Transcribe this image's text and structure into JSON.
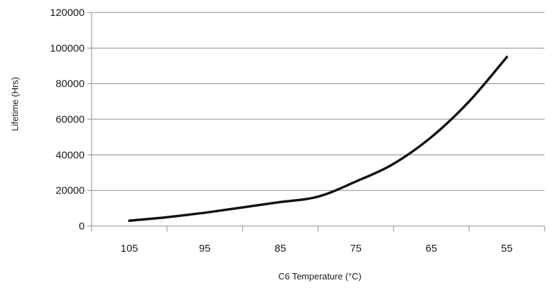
{
  "chart_data": {
    "type": "line",
    "x_categories": [
      "105",
      "95",
      "85",
      "75",
      "65",
      "55"
    ],
    "series": [
      {
        "points": [
          {
            "x": 105,
            "y": 3000
          },
          {
            "x": 100,
            "y": 5000
          },
          {
            "x": 95,
            "y": 7500
          },
          {
            "x": 90,
            "y": 10500
          },
          {
            "x": 85,
            "y": 13500
          },
          {
            "x": 80,
            "y": 16500
          },
          {
            "x": 75,
            "y": 25000
          },
          {
            "x": 70,
            "y": 35000
          },
          {
            "x": 65,
            "y": 50000
          },
          {
            "x": 60,
            "y": 70000
          },
          {
            "x": 55,
            "y": 95000
          }
        ],
        "color": "#111111"
      }
    ],
    "y_ticks": [
      0,
      20000,
      40000,
      60000,
      80000,
      100000,
      120000
    ],
    "y_tick_labels": [
      "0",
      "20000",
      "40000",
      "60000",
      "80000",
      "100000",
      "120000"
    ],
    "ylim": [
      0,
      120000
    ],
    "xlim": [
      110,
      50
    ],
    "xlabel": "C6 Temperature (°C)",
    "ylabel": "Lifetime (Hrs)",
    "grid": "horizontal"
  }
}
